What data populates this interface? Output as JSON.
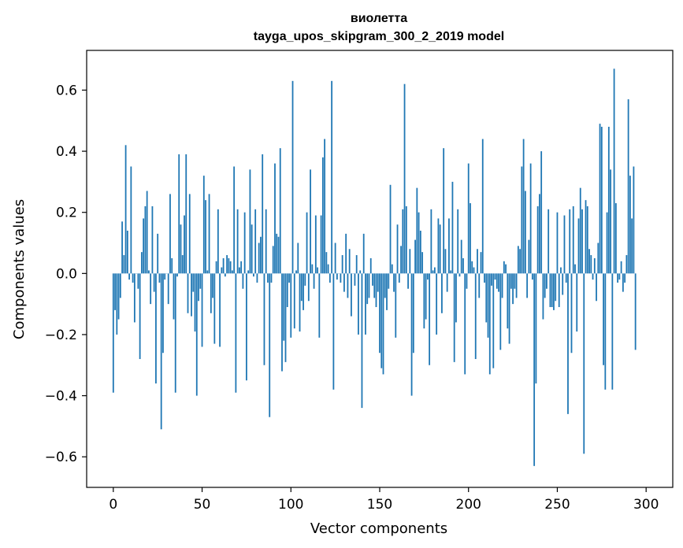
{
  "chart_data": {
    "type": "bar",
    "title": "виолетта",
    "subtitle": "tayga_upos_skipgram_300_2_2019 model",
    "xlabel": "Vector components",
    "ylabel": "Components values",
    "xlim": [
      -15,
      315
    ],
    "ylim": [
      -0.7,
      0.73
    ],
    "xticks": [
      0,
      50,
      100,
      150,
      200,
      250,
      300
    ],
    "yticks": [
      -0.6,
      -0.4,
      -0.2,
      0.0,
      0.2,
      0.4,
      0.6
    ],
    "ytick_labels": [
      "−0.6",
      "−0.4",
      "−0.2",
      "0.0",
      "0.2",
      "0.4",
      "0.6"
    ],
    "grid": false,
    "color": "#1f77b4",
    "values": [
      -0.39,
      -0.12,
      -0.2,
      -0.15,
      -0.08,
      0.17,
      0.06,
      0.42,
      0.14,
      -0.02,
      0.35,
      -0.03,
      -0.16,
      0.0,
      -0.05,
      -0.28,
      0.07,
      0.18,
      0.22,
      0.27,
      0.01,
      -0.1,
      0.22,
      -0.06,
      -0.36,
      0.13,
      -0.03,
      -0.51,
      -0.26,
      -0.02,
      0.0,
      -0.1,
      0.26,
      0.05,
      -0.15,
      -0.39,
      -0.01,
      0.39,
      0.16,
      0.06,
      0.19,
      0.39,
      -0.13,
      0.26,
      -0.14,
      -0.06,
      -0.19,
      -0.4,
      -0.09,
      -0.05,
      -0.24,
      0.32,
      0.24,
      0.01,
      0.26,
      -0.13,
      -0.08,
      -0.23,
      0.04,
      0.21,
      -0.24,
      0.02,
      0.05,
      -0.01,
      0.06,
      0.05,
      0.04,
      0.01,
      0.35,
      -0.39,
      0.21,
      0.02,
      0.04,
      -0.05,
      0.2,
      -0.35,
      0.01,
      0.34,
      0.16,
      -0.01,
      0.21,
      -0.03,
      0.1,
      0.12,
      0.39,
      -0.3,
      0.21,
      -0.03,
      -0.47,
      -0.03,
      0.09,
      0.36,
      0.13,
      0.12,
      0.41,
      -0.32,
      -0.22,
      -0.29,
      -0.11,
      -0.03,
      -0.21,
      0.63,
      -0.18,
      0.01,
      0.1,
      -0.19,
      -0.09,
      -0.12,
      -0.04,
      0.2,
      -0.09,
      0.34,
      0.03,
      -0.05,
      0.19,
      0.02,
      -0.21,
      0.19,
      0.38,
      0.44,
      0.07,
      0.03,
      -0.03,
      0.63,
      -0.38,
      0.1,
      -0.02,
      0.0,
      -0.03,
      0.06,
      -0.06,
      0.13,
      -0.08,
      0.08,
      -0.14,
      0.0,
      -0.04,
      0.06,
      -0.2,
      0.01,
      -0.44,
      0.13,
      -0.2,
      -0.1,
      -0.08,
      0.05,
      -0.04,
      -0.08,
      -0.11,
      -0.06,
      -0.26,
      -0.31,
      -0.33,
      -0.08,
      -0.12,
      -0.05,
      0.29,
      0.03,
      -0.06,
      -0.21,
      0.16,
      -0.03,
      0.09,
      0.21,
      0.62,
      0.22,
      -0.05,
      0.08,
      -0.4,
      -0.26,
      0.11,
      0.28,
      0.2,
      0.14,
      0.07,
      -0.18,
      -0.15,
      -0.02,
      -0.3,
      0.21,
      0.01,
      0.02,
      -0.2,
      0.18,
      0.16,
      -0.13,
      0.41,
      0.08,
      -0.06,
      0.18,
      0.01,
      0.3,
      -0.29,
      -0.16,
      0.21,
      -0.01,
      0.11,
      0.05,
      -0.33,
      -0.05,
      0.36,
      0.23,
      0.04,
      0.02,
      -0.28,
      0.08,
      -0.08,
      0.07,
      0.44,
      -0.03,
      -0.16,
      -0.21,
      -0.33,
      -0.04,
      -0.31,
      -0.02,
      -0.05,
      -0.06,
      -0.25,
      -0.08,
      0.04,
      0.03,
      -0.18,
      -0.23,
      -0.05,
      -0.1,
      -0.05,
      -0.08,
      0.09,
      0.08,
      0.35,
      0.44,
      0.27,
      -0.08,
      0.11,
      0.36,
      -0.02,
      -0.63,
      -0.36,
      0.22,
      0.26,
      0.4,
      -0.15,
      -0.08,
      -0.05,
      0.21,
      -0.11,
      -0.11,
      -0.12,
      -0.09,
      0.2,
      -0.11,
      0.02,
      -0.07,
      0.19,
      -0.03,
      -0.46,
      0.21,
      -0.26,
      0.22,
      0.03,
      -0.19,
      0.18,
      0.28,
      0.21,
      -0.59,
      0.24,
      0.22,
      0.08,
      0.06,
      -0.02,
      0.05,
      -0.09,
      0.1,
      0.49,
      0.48,
      -0.3,
      -0.38,
      0.2,
      0.48,
      0.34,
      -0.38,
      0.67,
      0.23,
      -0.03,
      -0.02,
      0.04,
      -0.06,
      -0.03,
      0.06,
      0.57,
      0.32,
      0.18,
      0.35,
      -0.25
    ]
  }
}
